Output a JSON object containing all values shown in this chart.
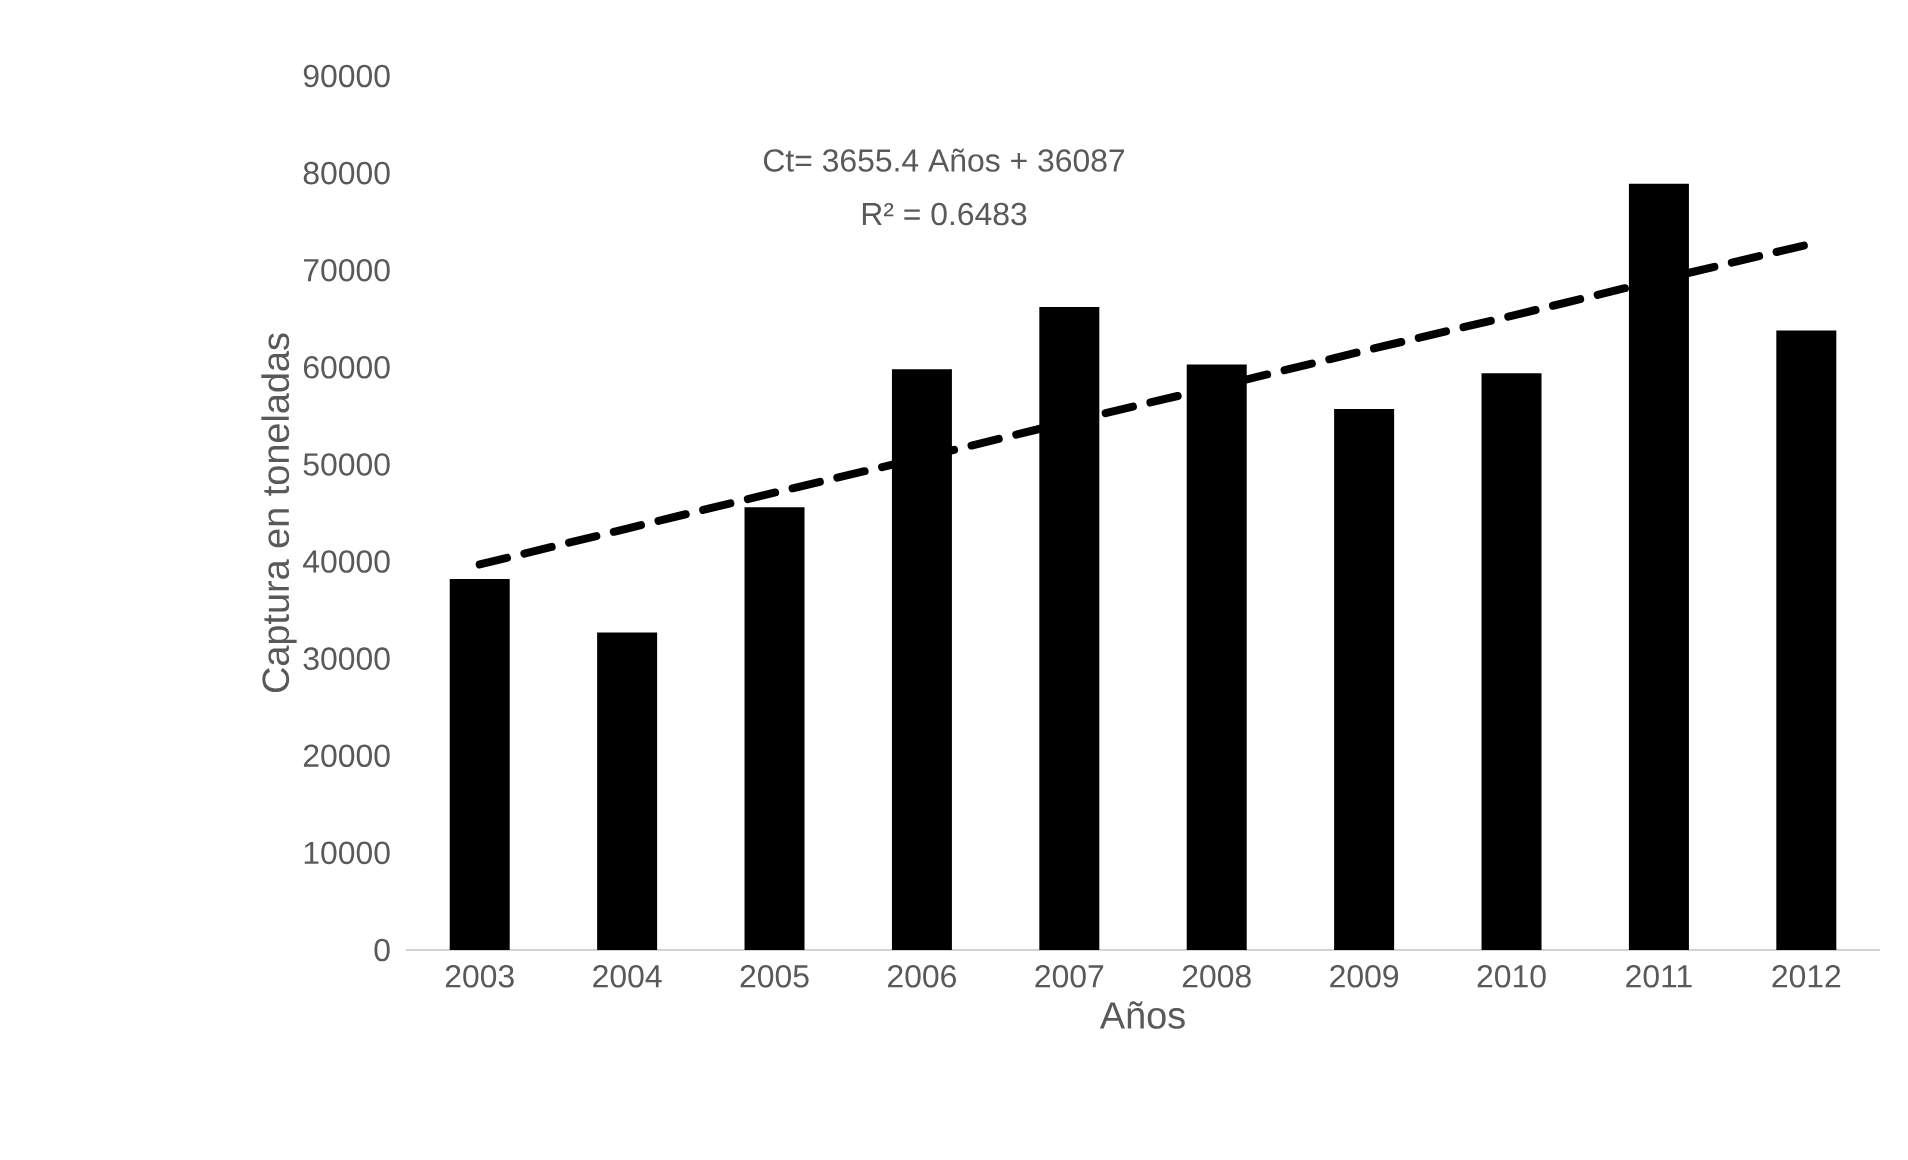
{
  "chart_data": {
    "type": "bar",
    "xlabel": "Años",
    "ylabel": "Captura en toneladas",
    "categories": [
      "2003",
      "2004",
      "2005",
      "2006",
      "2007",
      "2008",
      "2009",
      "2010",
      "2011",
      "2012"
    ],
    "series": [
      {
        "color": "#000000",
        "values": [
          38200,
          32700,
          45600,
          59800,
          66200,
          60300,
          55700,
          59400,
          78900,
          63800
        ]
      },
      {
        "type": "line",
        "color": "#000000",
        "line_style": "dashed",
        "values": [
          39700,
          43400,
          47100,
          50700,
          54400,
          58000,
          61700,
          65300,
          69000,
          72600
        ]
      }
    ],
    "ylim": [
      0,
      90000
    ],
    "yticks": [
      0,
      10000,
      20000,
      30000,
      40000,
      50000,
      60000,
      70000,
      80000,
      90000
    ],
    "annotations": [
      "Ct= 3655.4 Años + 36087",
      "R² = 0.6483"
    ],
    "grid": false
  }
}
